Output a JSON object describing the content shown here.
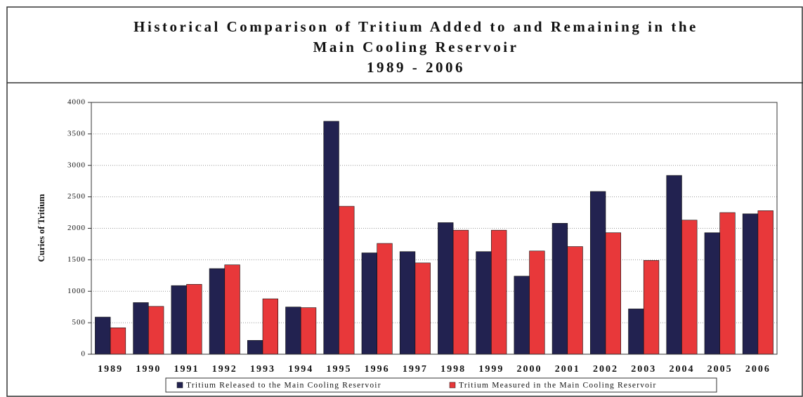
{
  "chart_data": {
    "type": "bar",
    "title": [
      "Historical Comparison of Tritium Added to and Remaining in the",
      "Main Cooling Reservoir",
      "1989 - 2006"
    ],
    "y_label": "Curies of Tritium",
    "categories": [
      "1989",
      "1990",
      "1991",
      "1992",
      "1993",
      "1994",
      "1995",
      "1996",
      "1997",
      "1998",
      "1999",
      "2000",
      "2001",
      "2002",
      "2003",
      "2004",
      "2005",
      "2006"
    ],
    "series": [
      {
        "name": "Tritium Released to the Main Cooling Reservoir",
        "color": "#222250",
        "values": [
          590,
          820,
          1090,
          1360,
          220,
          750,
          3700,
          1610,
          1630,
          2090,
          1630,
          1240,
          2080,
          2585,
          720,
          2840,
          1930,
          2230
        ]
      },
      {
        "name": "Tritium Measured in the Main Cooling Reservoir",
        "color": "#e8383a",
        "values": [
          420,
          760,
          1110,
          1420,
          880,
          740,
          2350,
          1760,
          1450,
          1970,
          1970,
          1640,
          1710,
          1930,
          1490,
          2130,
          2250,
          2280
        ]
      }
    ],
    "ylim": [
      0,
      4000
    ],
    "yticks": [
      0,
      500,
      1000,
      1500,
      2000,
      2500,
      3000,
      3500,
      4000
    ],
    "grid": true,
    "legend": "bottom"
  }
}
